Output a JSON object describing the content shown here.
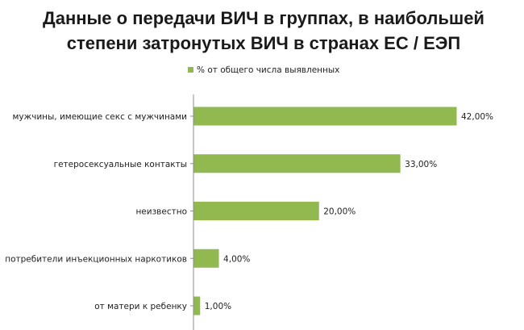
{
  "chart_data": {
    "type": "bar",
    "orientation": "horizontal",
    "title_lines": [
      "Данные о передачи ВИЧ в группах, в наибольшей",
      "степени затронутых ВИЧ в странах ЕС / ЕЭП"
    ],
    "legend": {
      "label": "% от общего числа выявленных",
      "position": "top"
    },
    "categories": [
      "мужчины, имеющие секс с мужчинами",
      "гетеросексуальные контакты",
      "неизвестно",
      "потребители инъекционных наркотиков",
      "от матери к ребенку"
    ],
    "values": [
      42,
      33,
      20,
      4,
      1
    ],
    "value_labels": [
      "42,00%",
      "33,00%",
      "20,00%",
      "4,00%",
      "1,00%"
    ],
    "xlim": [
      0,
      45
    ],
    "grid": false,
    "colors": {
      "bar": "#92b94f",
      "axis": "#8c8c8c"
    }
  }
}
